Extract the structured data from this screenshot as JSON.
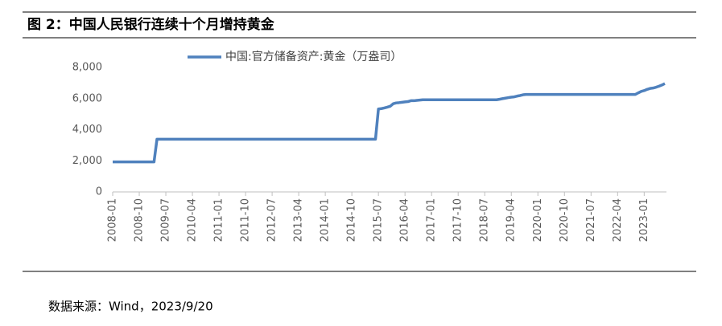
{
  "figure_title": "图 2：中国人民银行连续十个月增持黄金",
  "source": "数据来源：Wind，2023/9/20",
  "chart_data": {
    "type": "line",
    "x": [
      "2008-01",
      "2009-03",
      "2009-04",
      "2015-06",
      "2015-07",
      "2015-08",
      "2015-09",
      "2015-10",
      "2015-11",
      "2015-12",
      "2016-01",
      "2016-02",
      "2016-03",
      "2016-04",
      "2016-05",
      "2016-06",
      "2016-07",
      "2016-08",
      "2016-09",
      "2016-10",
      "2018-11",
      "2018-12",
      "2019-01",
      "2019-02",
      "2019-03",
      "2019-04",
      "2019-05",
      "2019-06",
      "2019-07",
      "2019-08",
      "2019-09",
      "2022-10",
      "2022-11",
      "2022-12",
      "2023-01",
      "2023-02",
      "2023-03",
      "2023-04",
      "2023-05",
      "2023-06",
      "2023-07",
      "2023-08"
    ],
    "series": [
      {
        "name": "中国:官方储备资产:黄金（万盎司）",
        "color": "#4f81bd",
        "values": [
          1929,
          1929,
          3389,
          3389,
          5331,
          5354,
          5395,
          5447,
          5505,
          5666,
          5719,
          5738,
          5762,
          5787,
          5805,
          5862,
          5862,
          5886,
          5904,
          5924,
          5924,
          5956,
          5994,
          6026,
          6062,
          6092,
          6110,
          6161,
          6194,
          6245,
          6264,
          6264,
          6367,
          6464,
          6512,
          6592,
          6650,
          6676,
          6727,
          6795,
          6869,
          6962
        ]
      }
    ],
    "xlim": [
      "2008-01",
      "2023-08"
    ],
    "xticks": [
      "2008-01",
      "2008-10",
      "2009-07",
      "2010-04",
      "2011-01",
      "2011-10",
      "2012-07",
      "2013-04",
      "2014-01",
      "2014-10",
      "2015-07",
      "2016-04",
      "2017-01",
      "2017-10",
      "2018-07",
      "2019-04",
      "2020-01",
      "2020-10",
      "2021-07",
      "2022-04",
      "2023-01"
    ],
    "ylim": [
      0,
      8000
    ],
    "yticks": [
      0,
      {
        "value": 2000,
        "label": "2,000"
      },
      {
        "value": 4000,
        "label": "4,000"
      },
      {
        "value": 6000,
        "label": "6,000"
      },
      {
        "value": 8000,
        "label": "8,000"
      }
    ],
    "legend": "top"
  }
}
